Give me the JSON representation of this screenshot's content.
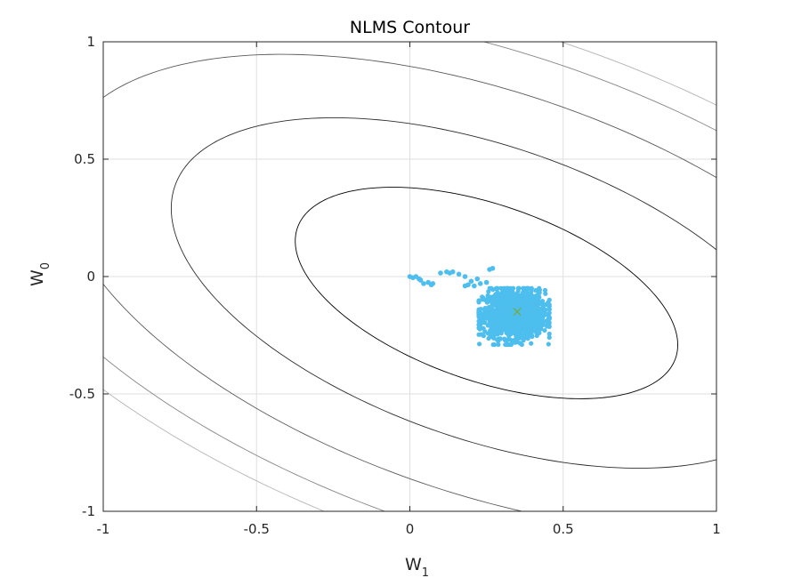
{
  "chart_data": {
    "type": "scatter",
    "title": "NLMS Contour",
    "xlabel": {
      "base": "W",
      "sub": "1"
    },
    "ylabel": {
      "base": "W",
      "sub": "0"
    },
    "xlim": [
      -1,
      1
    ],
    "ylim": [
      -1,
      1
    ],
    "xticks": [
      -1,
      -0.5,
      0,
      0.5,
      1
    ],
    "yticks": [
      -1,
      -0.5,
      0,
      0.5,
      1
    ],
    "xtick_labels": [
      "-1",
      "-0.5",
      "0",
      "0.5",
      "1"
    ],
    "ytick_labels": [
      "-1",
      "-0.5",
      "0",
      "0.5",
      "1"
    ],
    "grid": true,
    "contours": {
      "center": [
        0.25,
        -0.07
      ],
      "semi_axes_levels": [
        {
          "a": 0.68,
          "b": 0.36
        },
        {
          "a": 1.12,
          "b": 0.6
        },
        {
          "a": 1.52,
          "b": 0.82
        },
        {
          "a": 1.82,
          "b": 0.98
        },
        {
          "a": 1.98,
          "b": 1.07
        }
      ],
      "rotation_deg": -28,
      "color": "#000000"
    },
    "trajectory": {
      "color": "#4dbeee",
      "path": [
        [
          0.0,
          0.0
        ],
        [
          0.01,
          -0.005
        ],
        [
          0.02,
          0.0
        ],
        [
          0.03,
          -0.01
        ],
        [
          0.035,
          -0.015
        ],
        [
          0.045,
          -0.03
        ],
        [
          0.06,
          -0.025
        ],
        [
          0.075,
          -0.03
        ],
        [
          0.07,
          -0.035
        ],
        [
          0.1,
          0.015
        ],
        [
          0.12,
          0.02
        ],
        [
          0.13,
          0.015
        ],
        [
          0.14,
          0.02
        ],
        [
          0.16,
          0.01
        ],
        [
          0.18,
          0.0
        ],
        [
          0.2,
          -0.02
        ],
        [
          0.22,
          -0.01
        ],
        [
          0.23,
          -0.03
        ],
        [
          0.25,
          -0.025
        ],
        [
          0.21,
          -0.04
        ],
        [
          0.19,
          -0.035
        ],
        [
          0.18,
          -0.04
        ],
        [
          0.27,
          0.035
        ],
        [
          0.26,
          0.03
        ]
      ],
      "cluster": {
        "center": [
          0.34,
          -0.16
        ],
        "spread": [
          0.05,
          0.05
        ],
        "count": 1400
      }
    },
    "optimum": {
      "x": 0.35,
      "y": -0.15,
      "marker": "x",
      "color": "#77ac30"
    }
  }
}
